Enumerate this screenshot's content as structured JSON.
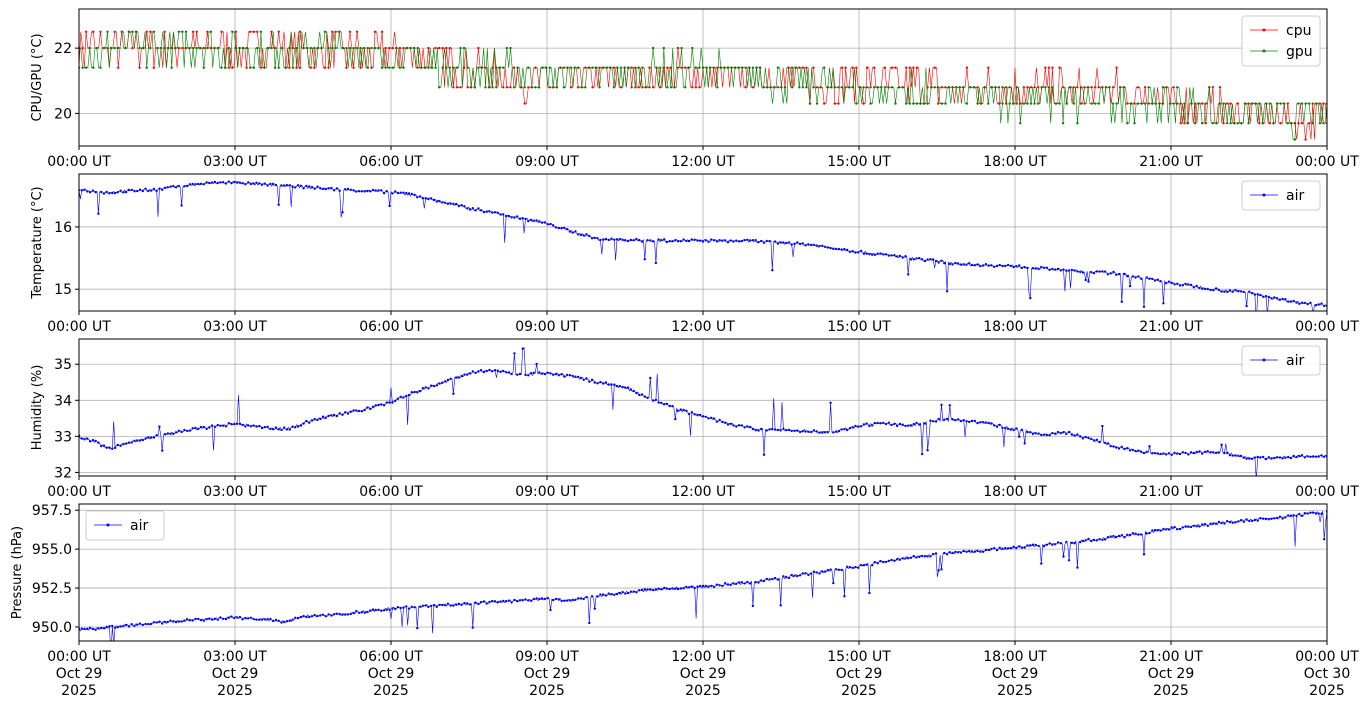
{
  "chart_data": [
    {
      "type": "line",
      "title": "",
      "ylabel": "CPU/GPU (°C)",
      "xlabel": "",
      "ylim": [
        19.0,
        23.2
      ],
      "yticks": [
        20,
        22
      ],
      "ytick_labels": [
        "20",
        "22"
      ],
      "xticks": [
        "00:00 UT",
        "03:00 UT",
        "06:00 UT",
        "09:00 UT",
        "12:00 UT",
        "15:00 UT",
        "18:00 UT",
        "21:00 UT",
        "00:00 UT"
      ],
      "grid": true,
      "legend": {
        "position": "top-right",
        "entries": [
          "cpu",
          "gpu"
        ]
      },
      "series": [
        {
          "name": "cpu",
          "color": "#ff0000",
          "marker": "dot",
          "noise_levels": [
            21.4,
            22.0,
            21.4,
            20.8,
            20.3,
            19.7
          ],
          "x_hours": [
            0,
            1,
            2,
            3,
            4,
            5,
            6,
            7,
            7.5,
            8,
            9,
            10,
            11,
            12,
            13,
            14,
            15,
            16,
            17,
            18,
            19,
            20,
            21,
            22,
            23,
            24
          ],
          "values": [
            22.0,
            22.0,
            22.0,
            22.0,
            22.0,
            21.9,
            21.8,
            21.6,
            21.4,
            21.2,
            21.0,
            21.1,
            21.2,
            21.2,
            21.1,
            21.0,
            20.9,
            20.8,
            20.8,
            20.8,
            20.7,
            20.6,
            20.4,
            20.1,
            19.9,
            19.8
          ]
        },
        {
          "name": "gpu",
          "color": "#008000",
          "marker": "dot",
          "x_hours": [
            0,
            1,
            2,
            3,
            4,
            5,
            6,
            7,
            7.5,
            8,
            9,
            10,
            11,
            12,
            13,
            14,
            15,
            16,
            17,
            18,
            19,
            20,
            21,
            22,
            23,
            24
          ],
          "values": [
            21.9,
            22.0,
            22.0,
            22.0,
            22.0,
            21.9,
            21.7,
            21.5,
            21.4,
            21.3,
            21.2,
            21.2,
            21.3,
            21.3,
            21.1,
            20.9,
            20.7,
            20.6,
            20.5,
            20.5,
            20.4,
            20.3,
            20.3,
            20.1,
            19.9,
            19.9
          ]
        }
      ]
    },
    {
      "type": "line",
      "title": "",
      "ylabel": "Temperature (°C)",
      "xlabel": "",
      "ylim": [
        14.65,
        16.85
      ],
      "yticks": [
        15,
        16
      ],
      "ytick_labels": [
        "15",
        "16"
      ],
      "xticks": [
        "00:00 UT",
        "03:00 UT",
        "06:00 UT",
        "09:00 UT",
        "12:00 UT",
        "15:00 UT",
        "18:00 UT",
        "21:00 UT",
        "00:00 UT"
      ],
      "grid": true,
      "legend": {
        "position": "top-right",
        "entries": [
          "air"
        ]
      },
      "series": [
        {
          "name": "air",
          "color": "#0000ff",
          "marker": "dot",
          "x_hours": [
            0,
            0.5,
            1,
            1.5,
            2,
            2.5,
            3,
            3.5,
            4,
            5,
            6,
            6.5,
            7,
            7.5,
            8,
            9,
            10,
            11,
            12,
            13,
            14,
            15,
            16,
            17,
            18,
            19,
            20,
            21,
            22,
            22.5,
            23,
            23.5,
            24
          ],
          "values": [
            16.6,
            16.55,
            16.58,
            16.6,
            16.66,
            16.7,
            16.72,
            16.68,
            16.66,
            16.6,
            16.56,
            16.5,
            16.4,
            16.3,
            16.23,
            16.05,
            15.8,
            15.78,
            15.78,
            15.77,
            15.72,
            15.6,
            15.5,
            15.4,
            15.37,
            15.3,
            15.25,
            15.1,
            14.98,
            14.95,
            14.85,
            14.78,
            14.75
          ],
          "dips_to": 16.2
        }
      ]
    },
    {
      "type": "line",
      "title": "",
      "ylabel": "Humidity (%)",
      "xlabel": "",
      "ylim": [
        31.9,
        35.7
      ],
      "yticks": [
        32,
        33,
        34,
        35
      ],
      "ytick_labels": [
        "32",
        "33",
        "34",
        "35"
      ],
      "xticks": [
        "00:00 UT",
        "03:00 UT",
        "06:00 UT",
        "09:00 UT",
        "12:00 UT",
        "15:00 UT",
        "18:00 UT",
        "21:00 UT",
        "00:00 UT"
      ],
      "grid": true,
      "legend": {
        "position": "top-right",
        "entries": [
          "air"
        ]
      },
      "series": [
        {
          "name": "air",
          "color": "#0000ff",
          "marker": "dot",
          "x_hours": [
            0,
            0.3,
            0.6,
            1,
            1.5,
            2,
            2.5,
            3,
            3.5,
            4,
            4.5,
            5,
            5.5,
            6,
            6.5,
            7,
            7.5,
            8,
            8.5,
            9,
            9.5,
            10,
            10.5,
            11,
            11.5,
            12,
            12.5,
            13,
            14,
            14.5,
            15,
            15.5,
            16,
            16.5,
            17,
            17.5,
            18,
            18.5,
            19,
            19.5,
            20,
            20.5,
            21,
            21.5,
            22,
            22.5,
            23,
            23.5,
            24
          ],
          "values": [
            33.0,
            32.85,
            32.65,
            32.85,
            33.0,
            33.15,
            33.25,
            33.35,
            33.25,
            33.2,
            33.45,
            33.6,
            33.75,
            33.95,
            34.25,
            34.5,
            34.75,
            34.85,
            34.7,
            34.75,
            34.65,
            34.5,
            34.35,
            34.05,
            33.75,
            33.55,
            33.35,
            33.2,
            33.15,
            33.1,
            33.3,
            33.35,
            33.3,
            33.45,
            33.45,
            33.35,
            33.2,
            33.05,
            33.1,
            32.9,
            32.7,
            32.55,
            32.5,
            32.55,
            32.55,
            32.4,
            32.4,
            32.45,
            32.45
          ]
        }
      ]
    },
    {
      "type": "line",
      "title": "",
      "ylabel": "Pressure (hPa)",
      "xlabel": "",
      "ylim": [
        949.1,
        957.9
      ],
      "yticks": [
        950.0,
        952.5,
        955.0,
        957.5
      ],
      "ytick_labels": [
        "950.0",
        "952.5",
        "955.0",
        "957.5"
      ],
      "xticks": [
        "00:00 UT",
        "03:00 UT",
        "06:00 UT",
        "09:00 UT",
        "12:00 UT",
        "15:00 UT",
        "18:00 UT",
        "21:00 UT",
        "00:00 UT"
      ],
      "xticks_date_lines": [
        "Oct 29",
        "Oct 29",
        "Oct 29",
        "Oct 29",
        "Oct 29",
        "Oct 29",
        "Oct 29",
        "Oct 29",
        "Oct 30"
      ],
      "xticks_year_lines": [
        "2025",
        "2025",
        "2025",
        "2025",
        "2025",
        "2025",
        "2025",
        "2025",
        "2025"
      ],
      "grid": true,
      "legend": {
        "position": "top-left",
        "entries": [
          "air"
        ]
      },
      "series": [
        {
          "name": "air",
          "color": "#0000ff",
          "marker": "dot",
          "x_hours": [
            0,
            1,
            2,
            3,
            3.5,
            4,
            4.3,
            5,
            6,
            7,
            8,
            9,
            9.5,
            10,
            11,
            12,
            13,
            14,
            15,
            16,
            17,
            18,
            19,
            20,
            21,
            22,
            23,
            24
          ],
          "values": [
            949.8,
            950.1,
            950.4,
            950.6,
            950.5,
            950.3,
            950.7,
            950.8,
            951.2,
            951.4,
            951.6,
            951.8,
            951.7,
            952.0,
            952.4,
            952.6,
            952.9,
            953.4,
            953.9,
            954.5,
            954.8,
            955.1,
            955.4,
            955.8,
            956.3,
            956.7,
            957.0,
            957.4
          ]
        }
      ]
    }
  ]
}
